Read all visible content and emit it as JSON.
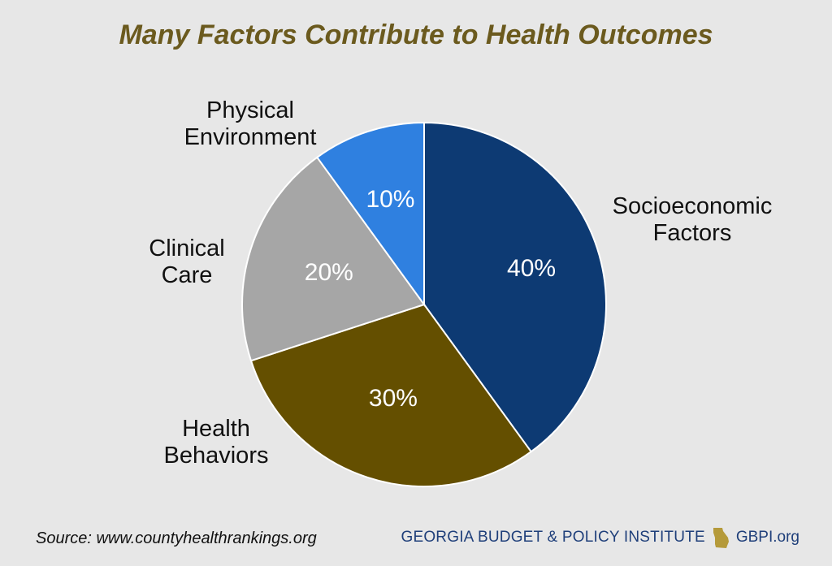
{
  "chart_data": {
    "type": "pie",
    "title": "Many Factors Contribute to Health Outcomes",
    "slices": [
      {
        "label": "Socioeconomic Factors",
        "value": 40,
        "value_label": "40%",
        "color": "#0d3a73"
      },
      {
        "label": "Health Behaviors",
        "value": 30,
        "value_label": "30%",
        "color": "#644f00"
      },
      {
        "label": "Clinical Care",
        "value": 20,
        "value_label": "20%",
        "color": "#a6a6a6"
      },
      {
        "label": "Physical Environment",
        "value": 10,
        "value_label": "10%",
        "color": "#2f80e0"
      }
    ],
    "legend": "none",
    "start": "12 o'clock, clockwise"
  },
  "labels": {
    "socioeconomic_line1": "Socioeconomic",
    "socioeconomic_line2": "Factors",
    "health_line1": "Health",
    "health_line2": "Behaviors",
    "clinical_line1": "Clinical",
    "clinical_line2": "Care",
    "physical_line1": "Physical",
    "physical_line2": "Environment"
  },
  "footer": {
    "source": "Source: www.countyhealthrankings.org",
    "brand": "GEORGIA BUDGET & POLICY INSTITUTE",
    "site": "GBPI.org",
    "brand_color": "#1f3f7a",
    "icon": "georgia-state-icon"
  }
}
